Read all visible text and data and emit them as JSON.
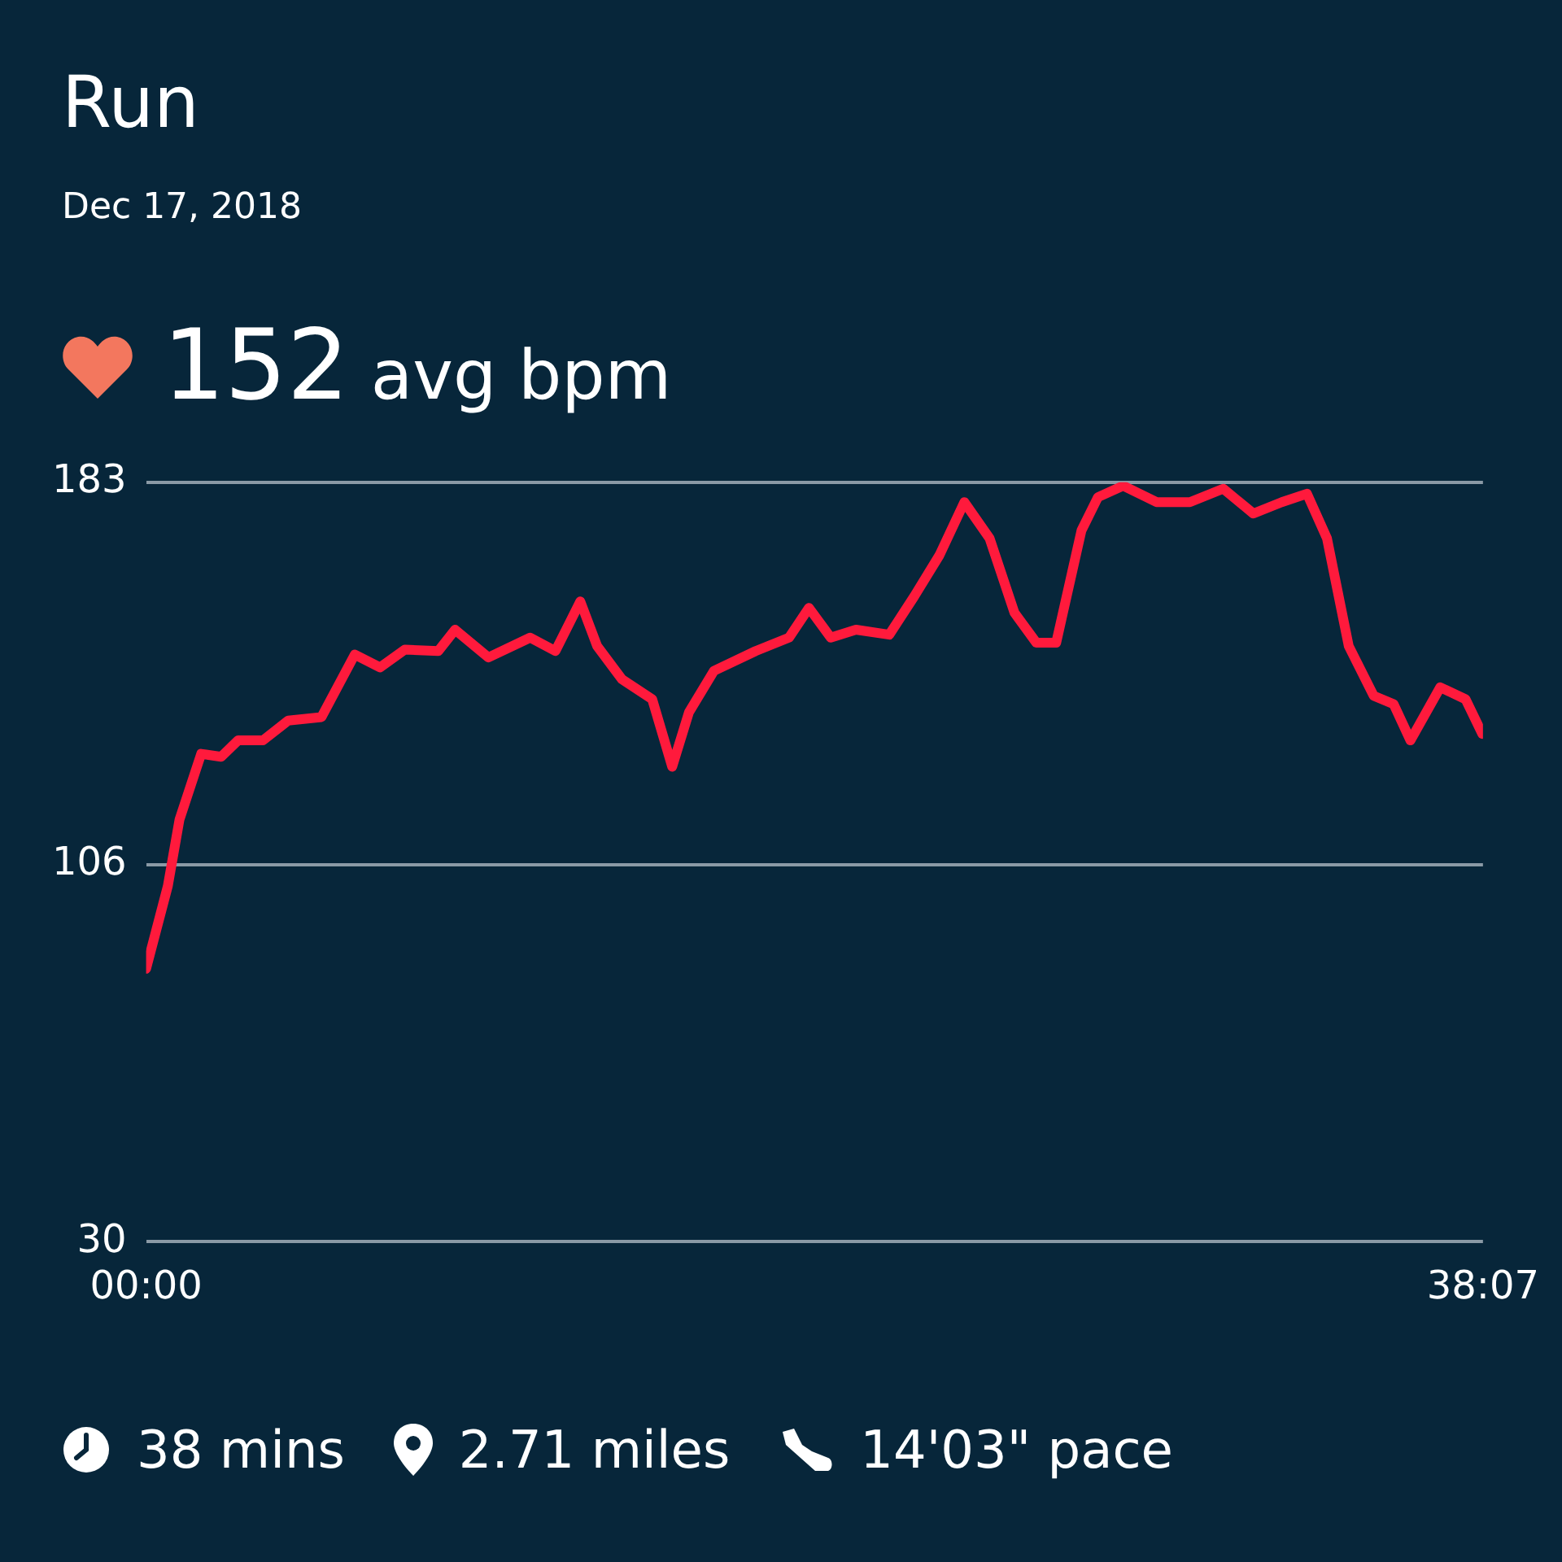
{
  "chart_data": {
    "type": "line",
    "title": "Run",
    "subtitle": "Dec 17, 2018",
    "annotations": [
      "152 avg bpm",
      "38 mins",
      "2.71 miles",
      "14'03\" pace"
    ],
    "x": [
      0,
      0.62,
      0.95,
      1.57,
      2.14,
      2.62,
      3.33,
      4.05,
      5.0,
      5.95,
      6.67,
      7.38,
      8.33,
      8.81,
      9.76,
      10.95,
      11.67,
      12.38,
      12.86,
      13.57,
      14.43,
      15.0,
      15.48,
      16.19,
      17.38,
      18.33,
      18.9,
      19.52,
      20.24,
      21.19,
      21.9,
      22.62,
      23.33,
      24.05,
      24.76,
      25.38,
      25.95,
      26.67,
      27.14,
      27.86,
      28.81,
      29.76,
      30.71,
      31.57,
      32.38,
      33.1,
      33.67,
      34.29,
      35.0,
      35.57,
      36.05,
      36.9,
      37.62,
      38.1
    ],
    "series": [
      {
        "color": "#ff1a3c",
        "values": [
          85,
          101.7,
          115,
          128.3,
          127.7,
          131,
          131,
          135,
          135.7,
          148.3,
          145.7,
          149.3,
          149,
          153.3,
          147.7,
          151.7,
          149,
          159,
          150,
          143.3,
          139.3,
          125.7,
          136.7,
          145,
          149,
          151.7,
          157.7,
          151.7,
          153.3,
          152.3,
          160,
          168.3,
          179,
          171.7,
          156.7,
          150.7,
          150.7,
          173.3,
          180,
          182.3,
          179,
          179,
          181.7,
          176.7,
          179,
          180.7,
          171.7,
          150,
          140,
          138.3,
          131,
          141.7,
          139.3,
          132.3
        ]
      }
    ],
    "xlim": [
      0,
      38.117
    ],
    "xticks": [
      {
        "value": 0,
        "label": "00:00"
      },
      {
        "value": 38.117,
        "label": "38:07"
      }
    ],
    "ylim": [
      30,
      183
    ],
    "yticks": [
      30,
      106,
      183
    ],
    "grid": "y",
    "legend": false,
    "marker": "none"
  }
}
